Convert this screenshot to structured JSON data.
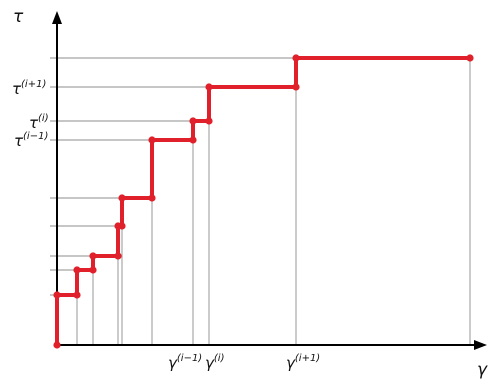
{
  "axes": {
    "x_symbol": "γ",
    "y_symbol": "τ"
  },
  "x_ticks": [
    {
      "base": "γ",
      "sup": "(i−1)"
    },
    {
      "base": "γ",
      "sup": "(i)"
    },
    {
      "base": "γ",
      "sup": "(i+1)"
    }
  ],
  "y_ticks": [
    {
      "base": "τ",
      "sup": "(i+1)"
    },
    {
      "base": "τ",
      "sup": "(i)"
    },
    {
      "base": "τ",
      "sup": "(i−1)"
    }
  ],
  "colors": {
    "staircase": "#e0202a",
    "axis": "#000000",
    "guide": "#8c8c8c"
  },
  "icons": [
    "axis-arrow-up",
    "axis-arrow-right"
  ]
}
